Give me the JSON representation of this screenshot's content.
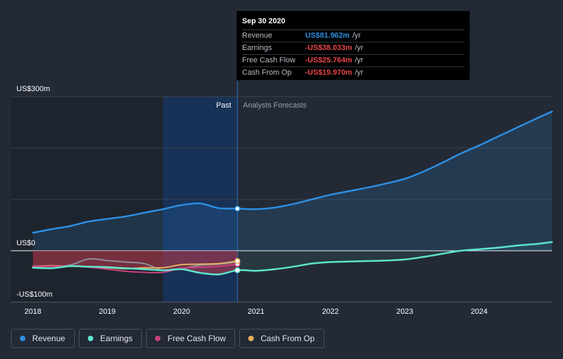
{
  "tooltip": {
    "date": "Sep 30 2020",
    "rows": [
      {
        "label": "Revenue",
        "value": "US$81.962m",
        "unit": "/yr",
        "color": "#2d8fe3"
      },
      {
        "label": "Earnings",
        "value": "-US$38.033m",
        "unit": "/yr",
        "color": "#e8454a"
      },
      {
        "label": "Free Cash Flow",
        "value": "-US$25.764m",
        "unit": "/yr",
        "color": "#e8454a"
      },
      {
        "label": "Cash From Op",
        "value": "-US$19.970m",
        "unit": "/yr",
        "color": "#e8454a"
      }
    ]
  },
  "legend": [
    {
      "label": "Revenue",
      "color": "#2d8fe3"
    },
    {
      "label": "Earnings",
      "color": "#5ee6cf"
    },
    {
      "label": "Free Cash Flow",
      "color": "#c9427f"
    },
    {
      "label": "Cash From Op",
      "color": "#e8b060"
    }
  ],
  "chart_data": {
    "type": "line",
    "y_tick_labels": [
      "US$300m",
      "US$0",
      "-US$100m"
    ],
    "ylim": [
      -100,
      300
    ],
    "x_ticks": [
      2018,
      2019,
      2020,
      2021,
      2022,
      2023,
      2024
    ],
    "x_tick_labels": [
      "2018",
      "2019",
      "2020",
      "2021",
      "2022",
      "2023",
      "2024"
    ],
    "xlim": [
      2018,
      2024.98
    ],
    "region_labels": {
      "past": "Past",
      "forecast": "Analysts Forecasts"
    },
    "past_end": 2020.75,
    "highlight_start": 2019.75,
    "series": [
      {
        "name": "Revenue",
        "color": "#2d8fe3",
        "past": [
          [
            2018.0,
            35
          ],
          [
            2018.25,
            42
          ],
          [
            2018.5,
            48
          ],
          [
            2018.75,
            57
          ],
          [
            2019.0,
            62
          ],
          [
            2019.25,
            67
          ],
          [
            2019.5,
            74
          ],
          [
            2019.75,
            81
          ],
          [
            2020.0,
            89
          ],
          [
            2020.25,
            92
          ],
          [
            2020.5,
            83
          ],
          [
            2020.75,
            82
          ]
        ],
        "forecast": [
          [
            2020.75,
            82
          ],
          [
            2021.0,
            81
          ],
          [
            2021.25,
            84
          ],
          [
            2021.5,
            91
          ],
          [
            2021.75,
            100
          ],
          [
            2022.0,
            109
          ],
          [
            2022.25,
            116
          ],
          [
            2022.5,
            123
          ],
          [
            2022.75,
            131
          ],
          [
            2023.0,
            140
          ],
          [
            2023.25,
            154
          ],
          [
            2023.5,
            171
          ],
          [
            2023.75,
            189
          ],
          [
            2024.0,
            205
          ],
          [
            2024.25,
            222
          ],
          [
            2024.5,
            239
          ],
          [
            2024.75,
            256
          ],
          [
            2024.98,
            271
          ]
        ]
      },
      {
        "name": "Earnings",
        "color": "#5ee6cf",
        "past": [
          [
            2018.0,
            -33
          ],
          [
            2018.25,
            -34
          ],
          [
            2018.5,
            -30
          ],
          [
            2018.75,
            -31
          ],
          [
            2019.0,
            -32
          ],
          [
            2019.25,
            -34
          ],
          [
            2019.5,
            -36
          ],
          [
            2019.75,
            -38
          ],
          [
            2020.0,
            -36
          ],
          [
            2020.25,
            -43
          ],
          [
            2020.5,
            -46
          ],
          [
            2020.75,
            -38
          ]
        ],
        "forecast": [
          [
            2020.75,
            -38
          ],
          [
            2021.0,
            -39
          ],
          [
            2021.25,
            -36
          ],
          [
            2021.5,
            -31
          ],
          [
            2021.75,
            -25
          ],
          [
            2022.0,
            -22
          ],
          [
            2022.25,
            -21
          ],
          [
            2022.5,
            -20
          ],
          [
            2022.75,
            -19
          ],
          [
            2023.0,
            -17
          ],
          [
            2023.25,
            -12
          ],
          [
            2023.5,
            -6
          ],
          [
            2023.75,
            0
          ],
          [
            2024.0,
            3
          ],
          [
            2024.25,
            6
          ],
          [
            2024.5,
            10
          ],
          [
            2024.75,
            13
          ],
          [
            2024.98,
            17
          ]
        ]
      },
      {
        "name": "Free Cash Flow",
        "color": "#c9427f",
        "past": [
          [
            2018.0,
            -30
          ],
          [
            2018.25,
            -30
          ],
          [
            2018.5,
            -30
          ],
          [
            2018.75,
            -32
          ],
          [
            2019.0,
            -36
          ],
          [
            2019.25,
            -40
          ],
          [
            2019.5,
            -42
          ],
          [
            2019.75,
            -42
          ],
          [
            2020.0,
            -34
          ],
          [
            2020.25,
            -32
          ],
          [
            2020.5,
            -30
          ],
          [
            2020.75,
            -26
          ]
        ],
        "forecast": []
      },
      {
        "name": "Cash From Op",
        "color": "#e8b060",
        "past": [
          [
            2018.0,
            -30
          ],
          [
            2018.25,
            -29
          ],
          [
            2018.5,
            -30
          ],
          [
            2018.75,
            -31
          ],
          [
            2019.0,
            -33
          ],
          [
            2019.25,
            -35
          ],
          [
            2019.5,
            -33
          ],
          [
            2019.75,
            -33
          ],
          [
            2020.0,
            -27
          ],
          [
            2020.25,
            -26
          ],
          [
            2020.5,
            -25
          ],
          [
            2020.75,
            -20
          ]
        ],
        "forecast": []
      },
      {
        "name": "",
        "color": "#8a9099",
        "past": [
          [
            2018.0,
            -31
          ],
          [
            2018.25,
            -30
          ],
          [
            2018.5,
            -28
          ],
          [
            2018.75,
            -16
          ],
          [
            2019.0,
            -19
          ],
          [
            2019.25,
            -22
          ],
          [
            2019.5,
            -25
          ],
          [
            2019.75,
            -38
          ],
          [
            2020.0,
            -35
          ],
          [
            2020.25,
            -28
          ],
          [
            2020.5,
            -26
          ],
          [
            2020.75,
            -22
          ]
        ],
        "forecast": []
      }
    ],
    "markers": [
      {
        "series": "Revenue",
        "x": 2020.75,
        "y": 82
      },
      {
        "series": "Earnings",
        "x": 2020.75,
        "y": -38
      },
      {
        "series": "Free Cash Flow",
        "x": 2020.75,
        "y": -26
      },
      {
        "series": "Cash From Op",
        "x": 2020.75,
        "y": -20
      }
    ]
  }
}
